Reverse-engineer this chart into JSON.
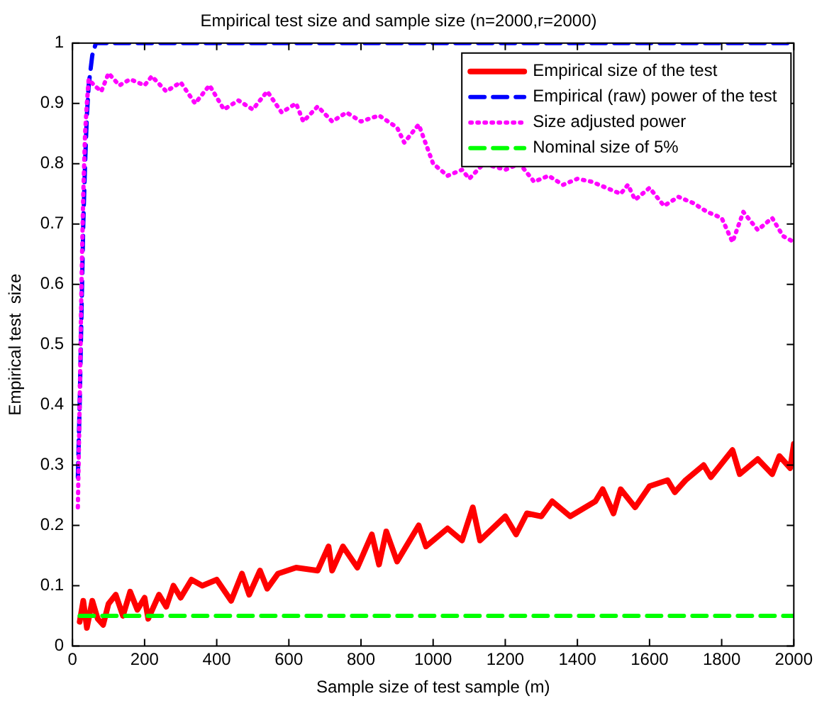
{
  "chart_data": {
    "type": "line",
    "title": "Empirical test size and sample size (n=2000,r=2000)",
    "xlabel": "Sample size of test sample (m)",
    "ylabel": "Empirical test  size",
    "xlim": [
      0,
      2000
    ],
    "xticks": [
      0,
      200,
      400,
      600,
      800,
      1000,
      1200,
      1400,
      1600,
      1800,
      2000
    ],
    "ylim": [
      0,
      1
    ],
    "yticks": [
      0,
      0.1,
      0.2,
      0.3,
      0.4,
      0.5,
      0.6,
      0.7,
      0.8,
      0.9,
      1
    ],
    "grid": false,
    "legend": "top right",
    "marker": "none",
    "series": [
      {
        "name": "Empirical size of the test",
        "color": "#ff0000",
        "line_style": "solid",
        "x": [
          20,
          30,
          40,
          55,
          70,
          85,
          100,
          120,
          140,
          160,
          180,
          200,
          210,
          240,
          260,
          280,
          300,
          330,
          360,
          400,
          440,
          470,
          490,
          520,
          540,
          570,
          620,
          680,
          710,
          720,
          750,
          790,
          830,
          850,
          870,
          900,
          940,
          960,
          980,
          1040,
          1080,
          1110,
          1130,
          1200,
          1230,
          1260,
          1300,
          1330,
          1380,
          1450,
          1470,
          1500,
          1520,
          1560,
          1600,
          1650,
          1670,
          1700,
          1750,
          1770,
          1830,
          1850,
          1900,
          1940,
          1960,
          1990,
          2000
        ],
        "values": [
          0.04,
          0.075,
          0.03,
          0.075,
          0.045,
          0.035,
          0.07,
          0.085,
          0.05,
          0.09,
          0.06,
          0.08,
          0.045,
          0.085,
          0.065,
          0.1,
          0.08,
          0.11,
          0.1,
          0.11,
          0.075,
          0.12,
          0.085,
          0.125,
          0.095,
          0.12,
          0.13,
          0.125,
          0.165,
          0.125,
          0.165,
          0.13,
          0.185,
          0.135,
          0.19,
          0.14,
          0.18,
          0.2,
          0.165,
          0.195,
          0.175,
          0.23,
          0.175,
          0.215,
          0.185,
          0.22,
          0.215,
          0.24,
          0.215,
          0.24,
          0.26,
          0.22,
          0.26,
          0.23,
          0.265,
          0.275,
          0.255,
          0.275,
          0.3,
          0.28,
          0.325,
          0.285,
          0.31,
          0.285,
          0.315,
          0.295,
          0.335
        ]
      },
      {
        "name": "Empirical (raw) power of the test",
        "color": "#0000ff",
        "line_style": "dashed",
        "x": [
          15,
          20,
          25,
          30,
          35,
          40,
          45,
          55,
          65,
          2000
        ],
        "values": [
          0.28,
          0.4,
          0.55,
          0.7,
          0.8,
          0.88,
          0.93,
          0.98,
          1,
          1
        ]
      },
      {
        "name": "Size adjusted power",
        "color": "#ff00ff",
        "line_style": "dotted",
        "x": [
          15,
          20,
          25,
          30,
          35,
          40,
          45,
          60,
          80,
          100,
          130,
          160,
          200,
          220,
          260,
          300,
          340,
          380,
          420,
          460,
          500,
          540,
          580,
          620,
          640,
          680,
          720,
          760,
          800,
          850,
          900,
          920,
          960,
          1000,
          1040,
          1080,
          1100,
          1140,
          1200,
          1240,
          1280,
          1320,
          1360,
          1400,
          1440,
          1480,
          1520,
          1540,
          1560,
          1600,
          1640,
          1680,
          1720,
          1760,
          1800,
          1830,
          1860,
          1900,
          1940,
          1970,
          2000
        ],
        "values": [
          0.23,
          0.4,
          0.6,
          0.75,
          0.85,
          0.9,
          0.94,
          0.93,
          0.92,
          0.95,
          0.93,
          0.94,
          0.93,
          0.945,
          0.92,
          0.935,
          0.9,
          0.93,
          0.89,
          0.905,
          0.89,
          0.92,
          0.885,
          0.9,
          0.87,
          0.895,
          0.87,
          0.885,
          0.87,
          0.88,
          0.86,
          0.835,
          0.865,
          0.8,
          0.78,
          0.79,
          0.775,
          0.8,
          0.79,
          0.8,
          0.77,
          0.78,
          0.765,
          0.775,
          0.77,
          0.76,
          0.75,
          0.765,
          0.74,
          0.76,
          0.73,
          0.745,
          0.735,
          0.72,
          0.71,
          0.67,
          0.72,
          0.69,
          0.71,
          0.68,
          0.67
        ]
      },
      {
        "name": "Nominal size of 5%",
        "color": "#00ff00",
        "line_style": "dashed",
        "x": [
          20,
          2000
        ],
        "values": [
          0.05,
          0.05
        ]
      }
    ]
  }
}
